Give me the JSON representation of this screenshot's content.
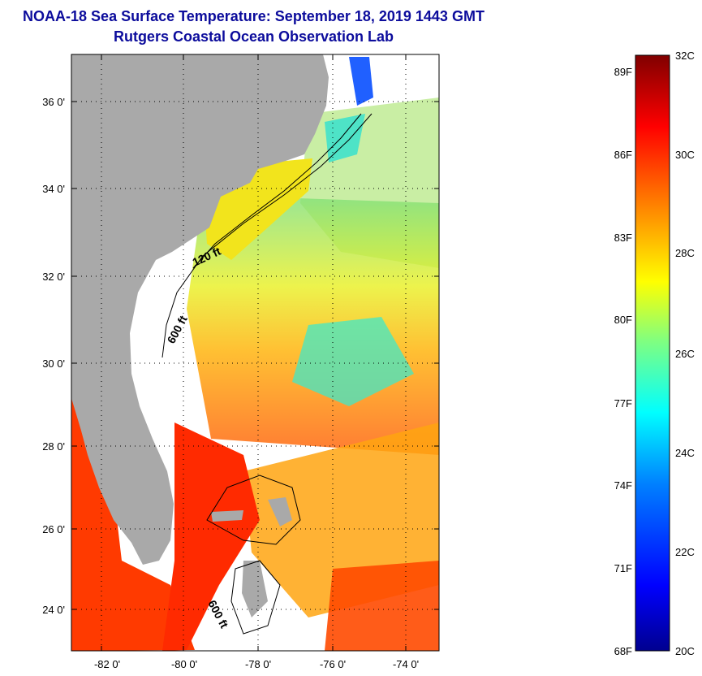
{
  "title": {
    "line1": "NOAA-18 Sea Surface Temperature:  September 18, 2019 1443 GMT",
    "line2": "Rutgers Coastal Ocean Observation Lab"
  },
  "map": {
    "lat_labels": [
      "36 0'",
      "34 0'",
      "32 0'",
      "30 0'",
      "28 0'",
      "26 0'",
      "24 0'"
    ],
    "lon_labels": [
      "-82 0'",
      "-80 0'",
      "-78 0'",
      "-76 0'",
      "-74 0'"
    ],
    "isobath_labels": [
      "120 ft",
      "600 ft",
      "600 ft"
    ]
  },
  "colorbar": {
    "fahrenheit_labels": [
      "89F",
      "86F",
      "83F",
      "80F",
      "77F",
      "74F",
      "71F",
      "68F"
    ],
    "celsius_labels": [
      "32C",
      "30C",
      "28C",
      "26C",
      "24C",
      "22C",
      "20C"
    ]
  },
  "colors": {
    "title": "#0c0c9c",
    "land": "#a9a9a9",
    "no_data": "#ffffff",
    "scale": [
      "#00008f",
      "#0000ff",
      "#0080ff",
      "#00ffff",
      "#80ff80",
      "#ffff00",
      "#ff8000",
      "#ff0000",
      "#800000"
    ]
  }
}
